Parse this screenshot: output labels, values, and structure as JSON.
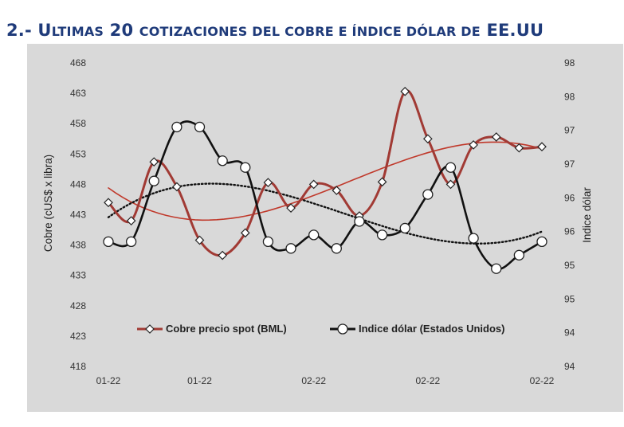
{
  "section": {
    "number": "2.-",
    "title_initial": "U",
    "title_rest": "LTIMAS",
    "title_number": "20",
    "title_tail": "COTIZACIONES DEL COBRE E ÍNDICE DÓLAR DE",
    "title_country": "EE.UU"
  },
  "chart_data": {
    "type": "line",
    "x": [
      "01-22",
      "01-22",
      "01-22",
      "01-22",
      "01-22",
      "01-22",
      "01-22",
      "02-22",
      "02-22",
      "02-22",
      "02-22",
      "02-22",
      "02-22",
      "02-22",
      "02-22",
      "02-22",
      "02-22",
      "02-22",
      "02-22",
      "02-22"
    ],
    "x_ticks": [
      "01-22",
      "01-22",
      "02-22",
      "02-22",
      "02-22"
    ],
    "x_tick_indices": [
      0,
      4,
      9,
      14,
      19
    ],
    "y_left": {
      "label": "Cobre (cUS$ x libra)",
      "ticks": [
        "418",
        "423",
        "428",
        "433",
        "438",
        "443",
        "448",
        "453",
        "458",
        "463",
        "468"
      ],
      "lim": [
        418,
        468
      ]
    },
    "y_right": {
      "label": "Indice dólar",
      "ticks": [
        "94",
        "94",
        "95",
        "95",
        "96",
        "96",
        "97",
        "97",
        "98",
        "98"
      ],
      "lim": [
        94,
        98.5
      ]
    },
    "series": [
      {
        "name": "Cobre precio spot (BML)",
        "axis": "left",
        "color": "#a13a34",
        "marker": "diamond",
        "values": [
          445,
          442,
          451.7,
          447.6,
          438.8,
          436.3,
          440,
          448.3,
          444.1,
          448,
          447,
          442.8,
          448.4,
          463.3,
          455.5,
          448,
          454.5,
          455.8,
          454,
          454.2
        ]
      },
      {
        "name": "Indice dólar (Estados Unidos)",
        "axis": "right",
        "color": "#111111",
        "marker": "circle",
        "values": [
          95.85,
          95.85,
          96.75,
          97.55,
          97.55,
          97.05,
          96.95,
          95.85,
          95.75,
          95.95,
          95.75,
          96.15,
          95.95,
          96.05,
          96.55,
          96.95,
          95.9,
          95.45,
          95.65,
          95.85
        ]
      }
    ],
    "trendlines": [
      {
        "of": "Cobre precio spot (BML)",
        "style": "solid",
        "color": "#c0392b",
        "kind": "polynomial"
      },
      {
        "of": "Indice dólar (Estados Unidos)",
        "style": "dotted",
        "color": "#111111",
        "kind": "polynomial"
      }
    ],
    "legend_position": "bottom-inside",
    "grid": false,
    "plot_background": "#d9d9d9"
  }
}
